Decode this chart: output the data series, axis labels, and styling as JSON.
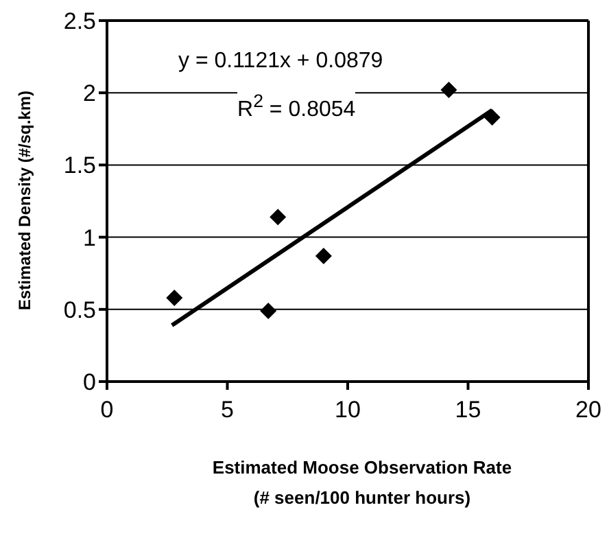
{
  "chart_data": {
    "type": "scatter",
    "xlabel": "Estimated Moose Observation Rate\n(# seen/100 hunter hours)",
    "ylabel": "Estimated Density (#/sq.km)",
    "xlim": [
      0,
      20
    ],
    "xticks": [
      0,
      5,
      10,
      15,
      20
    ],
    "ylim": [
      0,
      2.5
    ],
    "yticks": [
      0,
      0.5,
      1,
      1.5,
      2,
      2.5
    ],
    "grid": "y",
    "marker": "diamond",
    "series": [
      {
        "color": "#000000",
        "x": [
          2.8,
          6.7,
          7.1,
          9.0,
          14.2,
          16.0
        ],
        "values": [
          0.58,
          0.49,
          1.14,
          0.87,
          2.02,
          1.83
        ]
      },
      {
        "type": "line",
        "marker": "none",
        "color": "#000000",
        "x": [
          2.7,
          16
        ],
        "values": [
          0.39,
          1.88
        ]
      }
    ],
    "annotations": [
      "y = 0.1121x + 0.0879",
      "R$^{2}$ = 0.8054"
    ]
  }
}
